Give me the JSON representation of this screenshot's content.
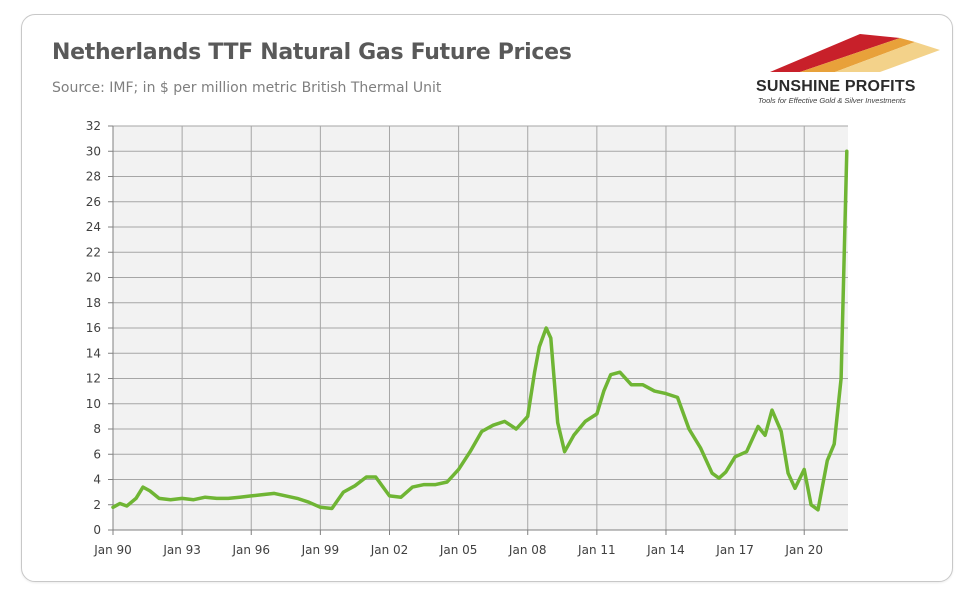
{
  "header": {
    "title": "Netherlands TTF Natural Gas Future Prices",
    "subtitle": "Source: IMF; in $ per million metric British Thermal Unit"
  },
  "logo": {
    "name": "SUNSHINE PROFITS",
    "tagline": "Tools for Effective Gold & Silver Investments"
  },
  "colors": {
    "line": "#6fb534",
    "plot_bg": "#f2f2f2",
    "grid": "#a6a6a6",
    "text": "#404040"
  },
  "chart_data": {
    "type": "line",
    "title": "Netherlands TTF Natural Gas Future Prices",
    "subtitle": "Source: IMF; in $ per million metric British Thermal Unit",
    "xlabel": "",
    "ylabel": "",
    "x_tick_labels": [
      "Jan 90",
      "Jan 93",
      "Jan 96",
      "Jan 99",
      "Jan 02",
      "Jan 05",
      "Jan 08",
      "Jan 11",
      "Jan 14",
      "Jan 17",
      "Jan 20"
    ],
    "x_tick_years": [
      1990,
      1993,
      1996,
      1999,
      2002,
      2005,
      2008,
      2011,
      2014,
      2017,
      2020
    ],
    "xlim": [
      1990,
      2021.9
    ],
    "ylim": [
      0,
      32
    ],
    "y_ticks": [
      0,
      2,
      4,
      6,
      8,
      10,
      12,
      14,
      16,
      18,
      20,
      22,
      24,
      26,
      28,
      30,
      32
    ],
    "grid": true,
    "legend": "none",
    "series": [
      {
        "x": [
          1990.0,
          1990.3,
          1990.6,
          1991.0,
          1991.3,
          1991.6,
          1992.0,
          1992.5,
          1993.0,
          1993.5,
          1994.0,
          1994.5,
          1995.0,
          1995.5,
          1996.0,
          1996.5,
          1997.0,
          1997.5,
          1998.0,
          1998.5,
          1999.0,
          1999.5,
          2000.0,
          2000.5,
          2001.0,
          2001.4,
          2001.8,
          2002.0,
          2002.5,
          2003.0,
          2003.5,
          2004.0,
          2004.5,
          2005.0,
          2005.5,
          2006.0,
          2006.5,
          2007.0,
          2007.5,
          2008.0,
          2008.3,
          2008.5,
          2008.8,
          2009.0,
          2009.3,
          2009.6,
          2010.0,
          2010.5,
          2011.0,
          2011.3,
          2011.6,
          2012.0,
          2012.5,
          2013.0,
          2013.5,
          2014.0,
          2014.5,
          2015.0,
          2015.5,
          2016.0,
          2016.3,
          2016.6,
          2017.0,
          2017.5,
          2018.0,
          2018.3,
          2018.6,
          2019.0,
          2019.3,
          2019.6,
          2020.0,
          2020.3,
          2020.6,
          2021.0,
          2021.3,
          2021.6,
          2021.85
        ],
        "y": [
          1.8,
          2.1,
          1.9,
          2.5,
          3.4,
          3.1,
          2.5,
          2.4,
          2.5,
          2.4,
          2.6,
          2.5,
          2.5,
          2.6,
          2.7,
          2.8,
          2.9,
          2.7,
          2.5,
          2.2,
          1.8,
          1.7,
          3.0,
          3.5,
          4.2,
          4.2,
          3.2,
          2.7,
          2.6,
          3.4,
          3.6,
          3.6,
          3.8,
          4.8,
          6.2,
          7.8,
          8.3,
          8.6,
          8.0,
          9.0,
          12.5,
          14.5,
          16.0,
          15.2,
          8.5,
          6.2,
          7.5,
          8.6,
          9.2,
          11.0,
          12.3,
          12.5,
          11.5,
          11.5,
          11.0,
          10.8,
          10.5,
          8.0,
          6.5,
          4.5,
          4.1,
          4.6,
          5.8,
          6.2,
          8.2,
          7.5,
          9.5,
          7.8,
          4.5,
          3.3,
          4.8,
          2.0,
          1.6,
          5.5,
          6.8,
          12.0,
          30.0
        ]
      }
    ]
  }
}
